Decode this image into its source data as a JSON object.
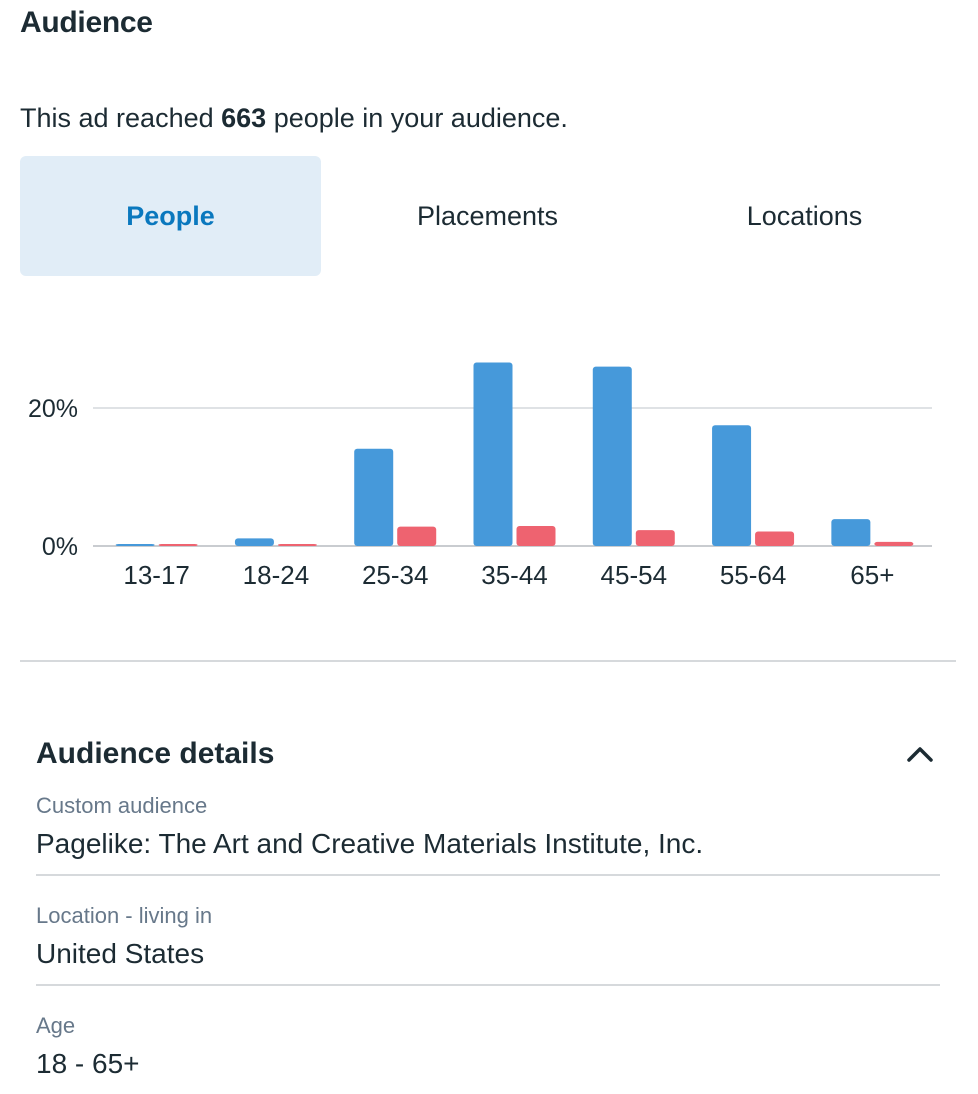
{
  "audience": {
    "title": "Audience",
    "reach_prefix": "This ad reached ",
    "reach_count": "663",
    "reach_suffix": " people in your audience."
  },
  "tabs": [
    {
      "label": "People",
      "active": true
    },
    {
      "label": "Placements",
      "active": false
    },
    {
      "label": "Locations",
      "active": false
    }
  ],
  "colors": {
    "series_a": "#4699da",
    "series_b": "#ee6370",
    "active_tab_bg": "#e1edf7",
    "active_tab_text": "#0a78be"
  },
  "chart_data": {
    "type": "bar",
    "categories": [
      "13-17",
      "18-24",
      "25-34",
      "35-44",
      "45-54",
      "55-64",
      "65+"
    ],
    "series": [
      {
        "values": [
          0.2,
          1.1,
          14.1,
          26.6,
          26.0,
          17.5,
          3.9
        ]
      },
      {
        "values": [
          0.2,
          0.2,
          2.8,
          2.9,
          2.3,
          2.1,
          0.6
        ]
      }
    ],
    "yticks": [
      "0%",
      "20%"
    ],
    "ytick_values": [
      0,
      20
    ],
    "ylim": [
      0,
      28
    ],
    "grid": true,
    "legend": "none"
  },
  "details": {
    "title": "Audience details",
    "toggle_icon": "chevron-up-icon",
    "rows": [
      {
        "label": "Custom audience",
        "value": "Pagelike: The Art and Creative Materials Institute, Inc."
      },
      {
        "label": "Location - living in",
        "value": "United States"
      },
      {
        "label": "Age",
        "value": "18 - 65+"
      }
    ]
  }
}
